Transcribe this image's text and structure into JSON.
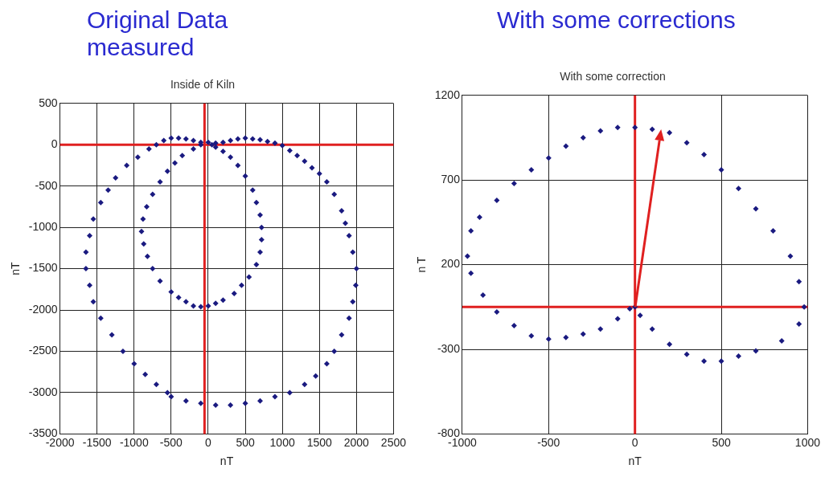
{
  "chart_data": [
    {
      "type": "scatter",
      "title": "Original Data\nmeasured",
      "subtitle": "Inside of Kiln",
      "xlabel": "nT",
      "ylabel": "nT",
      "xlim": [
        -2000,
        2500
      ],
      "xticks": [
        -2000,
        -1500,
        -1000,
        -500,
        0,
        500,
        1000,
        1500,
        2000,
        2500
      ],
      "ylim": [
        -3500,
        500
      ],
      "yticks": [
        -3500,
        -3000,
        -2500,
        -2000,
        -1500,
        -1000,
        -500,
        0,
        500
      ],
      "grid": true,
      "marker": "diamond",
      "ref_lines": [
        {
          "axis": "x",
          "value": -50,
          "color": "#e02020"
        },
        {
          "axis": "y",
          "value": 0,
          "color": "#e02020"
        }
      ],
      "series": [
        {
          "color": "#1a1a80",
          "x": [
            -500,
            -400,
            -300,
            -200,
            -100,
            100,
            200,
            300,
            400,
            500,
            600,
            700,
            800,
            900,
            1000,
            1100,
            1200,
            1300,
            1400,
            1500,
            1600,
            1700,
            1800,
            1850,
            1900,
            1950,
            2000,
            1990,
            1950,
            1900,
            1800,
            1700,
            1600,
            1450,
            1300,
            1100,
            900,
            700,
            500,
            300,
            100,
            -100,
            -300,
            -500,
            -550,
            -700,
            -850,
            -1000,
            -1150,
            -1300,
            -1450,
            -1550,
            -1600,
            -1650,
            -1650,
            -1600,
            -1550,
            -1450,
            -1350,
            -1250,
            -1100,
            -950,
            -800,
            -700,
            -600
          ],
          "values": [
            80,
            80,
            70,
            50,
            30,
            20,
            30,
            50,
            70,
            80,
            70,
            60,
            40,
            20,
            -10,
            -70,
            -130,
            -200,
            -280,
            -350,
            -450,
            -600,
            -800,
            -950,
            -1100,
            -1300,
            -1500,
            -1700,
            -1900,
            -2100,
            -2300,
            -2500,
            -2650,
            -2800,
            -2900,
            -3000,
            -3050,
            -3100,
            -3130,
            -3150,
            -3150,
            -3130,
            -3100,
            -3050,
            -3000,
            -2900,
            -2780,
            -2650,
            -2500,
            -2300,
            -2100,
            -1900,
            -1700,
            -1500,
            -1300,
            -1100,
            -900,
            -700,
            -550,
            -400,
            -250,
            -150,
            -50,
            0,
            50
          ]
        },
        {
          "color": "#1a1a80",
          "x": [
            0,
            50,
            100,
            200,
            300,
            400,
            500,
            600,
            650,
            700,
            720,
            720,
            700,
            650,
            550,
            450,
            350,
            200,
            100,
            0,
            -100,
            -200,
            -300,
            -400,
            -500,
            -650,
            -750,
            -820,
            -870,
            -900,
            -880,
            -830,
            -750,
            -650,
            -550,
            -450,
            -350,
            -200,
            -100
          ],
          "values": [
            30,
            0,
            -30,
            -80,
            -150,
            -250,
            -380,
            -550,
            -700,
            -850,
            -1000,
            -1150,
            -1300,
            -1450,
            -1600,
            -1700,
            -1800,
            -1880,
            -1920,
            -1950,
            -1960,
            -1950,
            -1900,
            -1850,
            -1780,
            -1650,
            -1500,
            -1350,
            -1200,
            -1050,
            -900,
            -750,
            -600,
            -450,
            -320,
            -220,
            -130,
            -50,
            0
          ]
        }
      ]
    },
    {
      "type": "scatter",
      "title": "With some corrections",
      "subtitle": "With some correction",
      "xlabel": "nT",
      "ylabel": "n T",
      "xlim": [
        -1000,
        1000
      ],
      "xticks": [
        -1000,
        -500,
        0,
        500,
        1000
      ],
      "ylim": [
        -800,
        1200
      ],
      "yticks": [
        -800,
        -300,
        200,
        700,
        1200
      ],
      "grid": true,
      "marker": "diamond",
      "ref_lines": [
        {
          "axis": "x",
          "value": 0,
          "color": "#e02020"
        },
        {
          "axis": "y",
          "value": -50,
          "color": "#e02020"
        }
      ],
      "series": [
        {
          "color": "#1a1a80",
          "x": [
            -30,
            -100,
            -200,
            -300,
            -400,
            -500,
            -600,
            -700,
            -800,
            -880,
            -950,
            -970,
            -950,
            -900,
            -800,
            -700,
            -600,
            -500,
            -400,
            -300,
            -200,
            -100,
            0,
            100,
            200,
            300,
            400,
            500,
            600,
            700,
            800,
            900,
            950,
            980,
            950,
            850,
            700,
            600,
            500,
            400,
            300,
            200,
            100,
            30,
            0
          ],
          "values": [
            -60,
            -120,
            -180,
            -210,
            -230,
            -240,
            -220,
            -160,
            -80,
            20,
            150,
            250,
            400,
            480,
            580,
            680,
            760,
            830,
            900,
            950,
            990,
            1010,
            1010,
            1000,
            980,
            920,
            850,
            760,
            650,
            530,
            400,
            250,
            100,
            -50,
            -150,
            -250,
            -310,
            -340,
            -370,
            -370,
            -330,
            -270,
            -180,
            -100,
            -50
          ]
        }
      ]
    }
  ]
}
